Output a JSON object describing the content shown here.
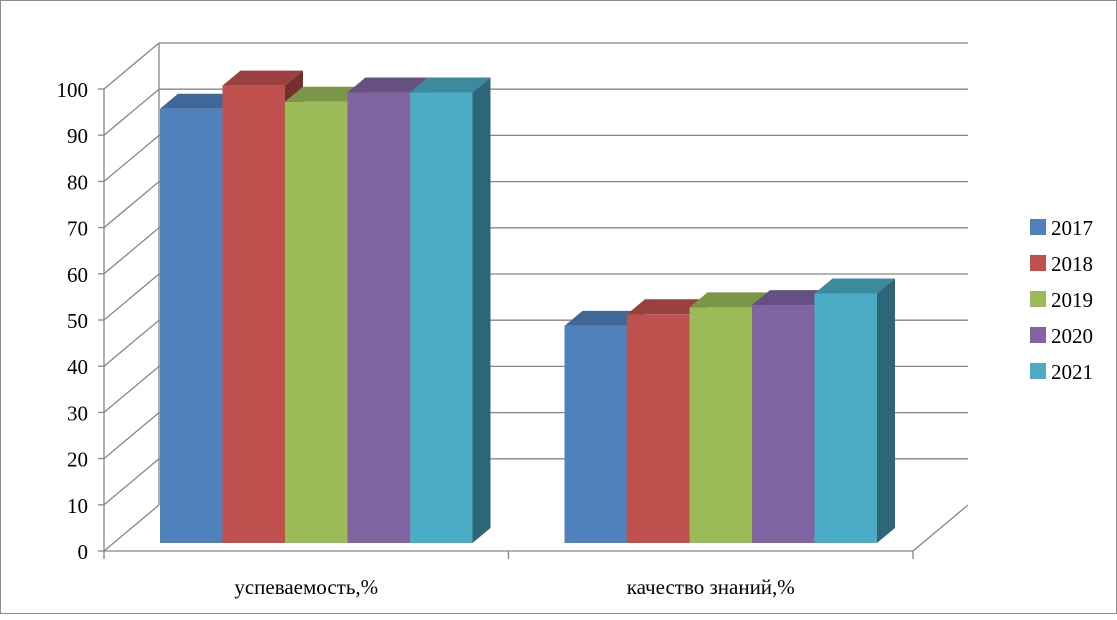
{
  "chart_data": {
    "type": "bar",
    "title": "",
    "xlabel": "",
    "ylabel": "",
    "ylim": [
      0,
      100
    ],
    "yticks": [
      0,
      10,
      20,
      30,
      40,
      50,
      60,
      70,
      80,
      90,
      100
    ],
    "grid": true,
    "legend_position": "right",
    "style": "3d-clustered-column",
    "categories": [
      "успеваемость,%",
      "качество знаний,%"
    ],
    "series": [
      {
        "name": "2017",
        "values": [
          94,
          47
        ],
        "color": "#4F81BD"
      },
      {
        "name": "2018",
        "values": [
          99,
          49.5
        ],
        "color": "#C0504D"
      },
      {
        "name": "2019",
        "values": [
          95.5,
          51
        ],
        "color": "#9BBB59"
      },
      {
        "name": "2020",
        "values": [
          97.5,
          51.5
        ],
        "color": "#8064A2"
      },
      {
        "name": "2021",
        "values": [
          97.5,
          54
        ],
        "color": "#4BACC6"
      }
    ]
  }
}
